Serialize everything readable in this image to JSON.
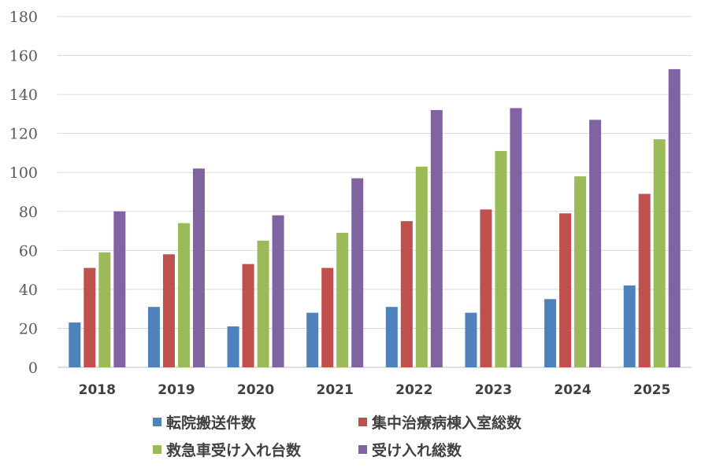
{
  "chart_data": {
    "type": "bar",
    "title": "",
    "xlabel": "",
    "ylabel": "",
    "categories": [
      "2018",
      "2019",
      "2020",
      "2021",
      "2022",
      "2023",
      "2024",
      "2025"
    ],
    "ylim": [
      0,
      180
    ],
    "yticks": [
      0,
      20,
      40,
      60,
      80,
      100,
      120,
      140,
      160,
      180
    ],
    "grid": true,
    "legend_position": "bottom",
    "series": [
      {
        "name": "転院搬送件数",
        "color": "#4f81bd",
        "values": [
          23,
          31,
          21,
          28,
          31,
          28,
          35,
          42
        ]
      },
      {
        "name": "集中治療病棟入室総数",
        "color": "#c0504d",
        "values": [
          51,
          58,
          53,
          51,
          75,
          81,
          79,
          89
        ]
      },
      {
        "name": "救急車受け入れ台数",
        "color": "#9bbb59",
        "values": [
          59,
          74,
          65,
          69,
          103,
          111,
          98,
          117
        ]
      },
      {
        "name": "受け入れ総数",
        "color": "#8064a2",
        "values": [
          80,
          102,
          78,
          97,
          132,
          133,
          127,
          153
        ]
      }
    ]
  }
}
